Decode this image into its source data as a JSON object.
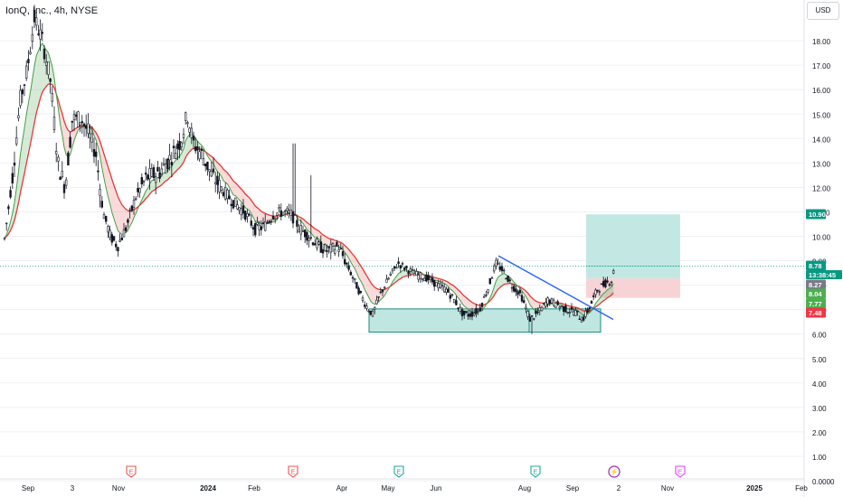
{
  "header": {
    "title": "IonQ, Inc., 4h, NYSE",
    "currency": "USD"
  },
  "colors": {
    "up": "#26a69a",
    "down": "#ef5350",
    "candle_body": "#131722",
    "ema_fast": "#43a047",
    "ema_slow": "#e53935",
    "target_zone": "#c3e8e4",
    "stop_zone": "#f8d3d6",
    "support_box": "#bfe6e0",
    "support_border": "#1e8c7e",
    "trendline": "#2962ff",
    "grid": "#eef0f3"
  },
  "price_axis": {
    "ticks": [
      "18.00",
      "17.00",
      "16.00",
      "15.00",
      "14.00",
      "13.00",
      "12.00",
      "11.00",
      "10.00",
      "9.00",
      "8.00",
      "7.00",
      "6.00",
      "5.00",
      "4.00",
      "3.00",
      "2.00",
      "1.00",
      "0.0000"
    ]
  },
  "time_axis": {
    "labels": [
      {
        "text": "Sep",
        "bold": false
      },
      {
        "text": "3",
        "bold": false
      },
      {
        "text": "Nov",
        "bold": false
      },
      {
        "text": "2024",
        "bold": true
      },
      {
        "text": "Feb",
        "bold": false
      },
      {
        "text": "Apr",
        "bold": false
      },
      {
        "text": "May",
        "bold": false
      },
      {
        "text": "Jun",
        "bold": false
      },
      {
        "text": "Aug",
        "bold": false
      },
      {
        "text": "Sep",
        "bold": false
      },
      {
        "text": "2",
        "bold": false
      },
      {
        "text": "Nov",
        "bold": false
      },
      {
        "text": "2025",
        "bold": true
      },
      {
        "text": "Feb",
        "bold": false
      }
    ]
  },
  "events": [
    {
      "type": "E",
      "kind": "earnings-past"
    },
    {
      "type": "E",
      "kind": "earnings-past"
    },
    {
      "type": "E",
      "kind": "earnings-green"
    },
    {
      "type": "E",
      "kind": "earnings-green"
    },
    {
      "type": "⚡",
      "kind": "dividend-lightning"
    },
    {
      "type": "E",
      "kind": "earnings-future"
    }
  ],
  "price_labels": [
    {
      "text": "10.90",
      "color": "#089981"
    },
    {
      "text": "8.78",
      "color": "#089981"
    },
    {
      "text": "13:38:45",
      "color": "#089981"
    },
    {
      "text": "8.27",
      "color": "#787b86"
    },
    {
      "text": "8.04",
      "color": "#4caf50"
    },
    {
      "text": "7.77",
      "color": "#4caf50"
    },
    {
      "text": "7.48",
      "color": "#f23645"
    }
  ],
  "chart_data": {
    "type": "candlestick",
    "title": "IonQ, Inc., 4h, NYSE",
    "ylim": [
      0,
      19
    ],
    "last_price": 8.78,
    "countdown": "13:38:45",
    "ema_fast_value": 8.04,
    "ema_slow_value": 7.77,
    "position": {
      "target": 10.9,
      "entry": 8.27,
      "stop": 7.48
    },
    "support_zone": [
      6.08,
      7.03
    ],
    "trendline": {
      "start": 9.2,
      "end": 6.6
    },
    "key_points": [
      {
        "date": "2023-09",
        "price": 9.9
      },
      {
        "date": "2023-09",
        "price": 18.9
      },
      {
        "date": "2023-10",
        "price": 12.0
      },
      {
        "date": "2023-11",
        "price": 9.6
      },
      {
        "date": "2023-12",
        "price": 13.4
      },
      {
        "date": "2024-01",
        "price": 15.0
      },
      {
        "date": "2024-02",
        "price": 11.5
      },
      {
        "date": "2024-03",
        "price": 9.5
      },
      {
        "date": "2024-04",
        "price": 6.8
      },
      {
        "date": "2024-05",
        "price": 8.8
      },
      {
        "date": "2024-06",
        "price": 6.8
      },
      {
        "date": "2024-07",
        "price": 9.0
      },
      {
        "date": "2024-08",
        "price": 6.6
      },
      {
        "date": "2024-09",
        "price": 6.6
      },
      {
        "date": "2024-09",
        "price": 8.78
      }
    ]
  }
}
